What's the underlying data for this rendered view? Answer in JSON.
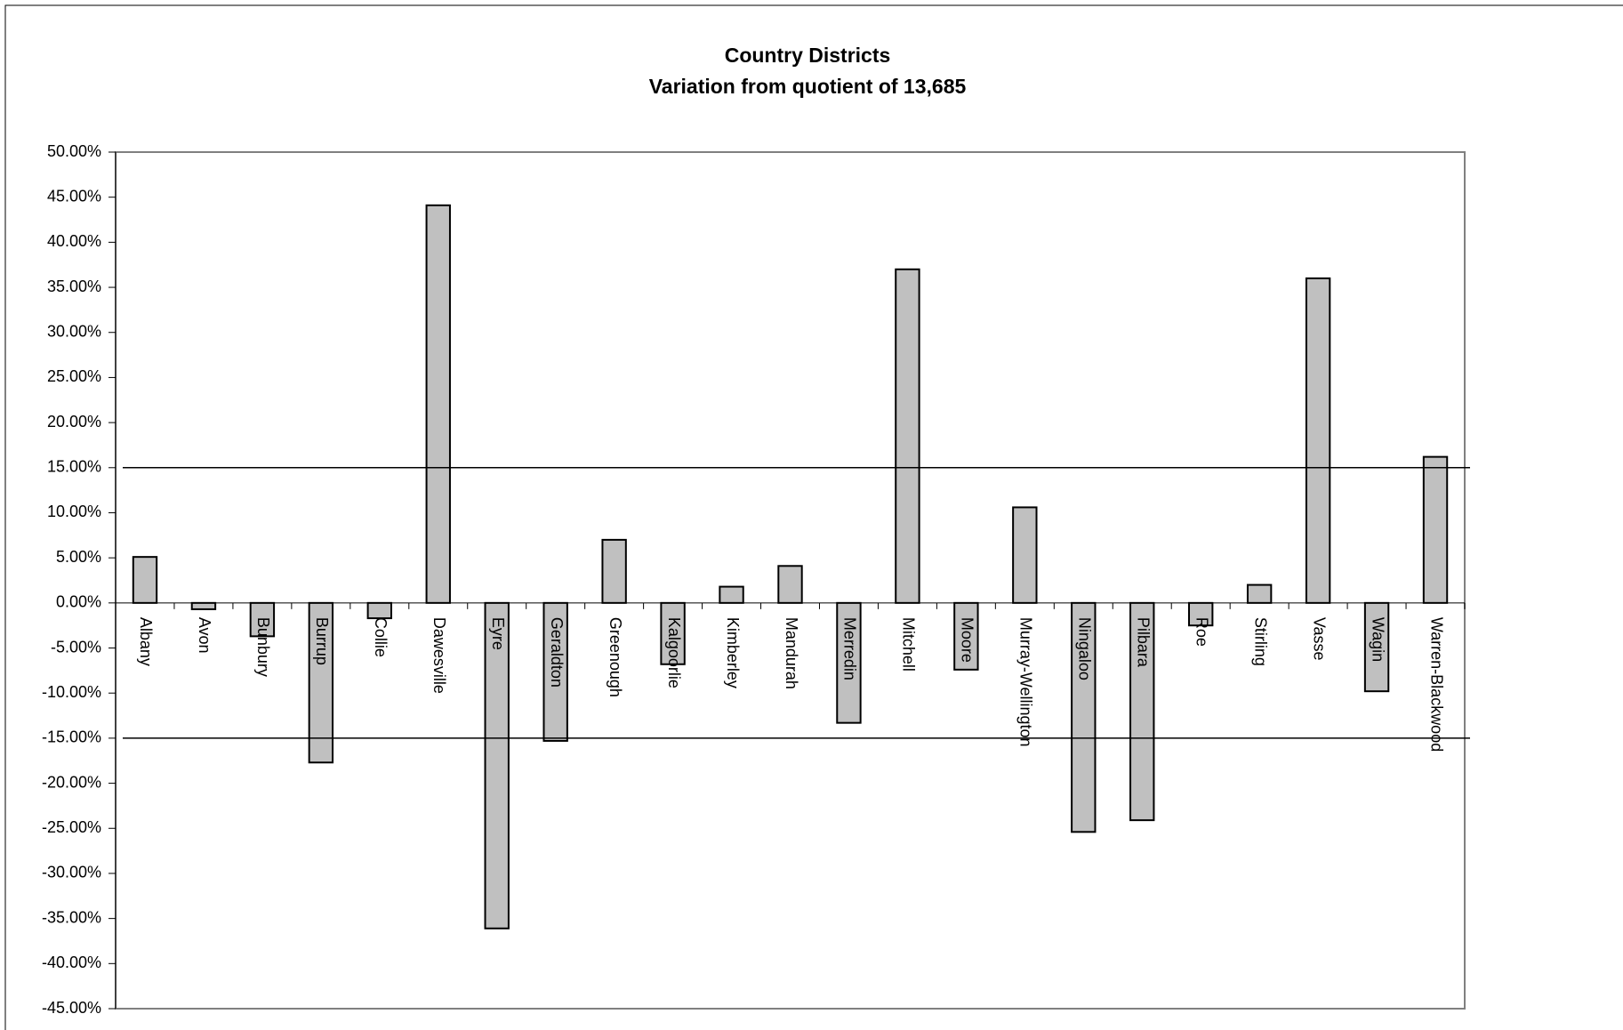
{
  "chart_data": {
    "type": "bar",
    "title": "Country Districts",
    "subtitle": "Variation from quotient of 13,685",
    "categories": [
      "Albany",
      "Avon",
      "Bunbury",
      "Burrup",
      "Collie",
      "Dawesville",
      "Eyre",
      "Geraldton",
      "Greenough",
      "Kalgoorlie",
      "Kimberley",
      "Mandurah",
      "Merredin",
      "Mitchell",
      "Moore",
      "Murray-Wellington",
      "Ningaloo",
      "Pilbara",
      "Roe",
      "Stirling",
      "Vasse",
      "Wagin",
      "Warren-Blackwood"
    ],
    "values": [
      5.1,
      -0.7,
      -3.7,
      -17.7,
      -1.7,
      44.1,
      -36.1,
      -15.3,
      7.0,
      -6.8,
      1.8,
      4.1,
      -13.3,
      37.0,
      -7.4,
      10.6,
      -25.4,
      -24.1,
      -2.5,
      2.0,
      36.0,
      -9.8,
      16.2
    ],
    "color": "#c0c0c0",
    "reference_lines": [
      15,
      -15
    ],
    "ylim": [
      -45,
      50
    ],
    "yticks": [
      {
        "value": 50,
        "label": "50.00%"
      },
      {
        "value": 45,
        "label": "45.00%"
      },
      {
        "value": 40,
        "label": "40.00%"
      },
      {
        "value": 35,
        "label": "35.00%"
      },
      {
        "value": 30,
        "label": "30.00%"
      },
      {
        "value": 25,
        "label": "25.00%"
      },
      {
        "value": 20,
        "label": "20.00%"
      },
      {
        "value": 15,
        "label": "15.00%"
      },
      {
        "value": 10,
        "label": "10.00%"
      },
      {
        "value": 5,
        "label": "5.00%"
      },
      {
        "value": 0,
        "label": "0.00%"
      },
      {
        "value": -5,
        "label": "-5.00%"
      },
      {
        "value": -10,
        "label": "-10.00%"
      },
      {
        "value": -15,
        "label": "-15.00%"
      },
      {
        "value": -20,
        "label": "-20.00%"
      },
      {
        "value": -25,
        "label": "-25.00%"
      },
      {
        "value": -30,
        "label": "-30.00%"
      },
      {
        "value": -35,
        "label": "-35.00%"
      },
      {
        "value": -40,
        "label": "-40.00%"
      },
      {
        "value": -45,
        "label": "-45.00%"
      }
    ],
    "grid": false
  }
}
